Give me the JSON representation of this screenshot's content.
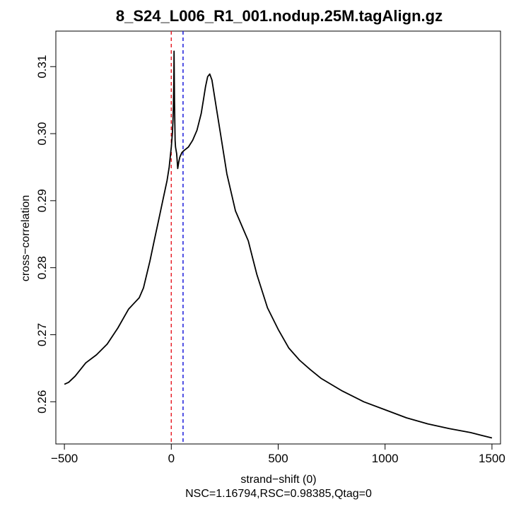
{
  "chart_data": {
    "type": "line",
    "title": "8_S24_L006_R1_001.nodup.25M.tagAlign.gz",
    "xlabel": "strand−shift (0)",
    "ylabel": "cross−correlation",
    "subtitle": "NSC=1.16794,RSC=0.98385,Qtag=0",
    "xlim": [
      -540,
      1540
    ],
    "ylim": [
      0.2537,
      0.3153
    ],
    "xticks": [
      -500,
      0,
      500,
      1000,
      1500
    ],
    "xtick_labels": [
      "−500",
      "0",
      "500",
      "1000",
      "1500"
    ],
    "yticks": [
      0.26,
      0.27,
      0.28,
      0.29,
      0.3,
      0.31
    ],
    "ytick_labels": [
      "0.26",
      "0.27",
      "0.28",
      "0.29",
      "0.30",
      "0.31"
    ],
    "grid": false,
    "vlines": [
      {
        "x": 0,
        "color": "#e8202a"
      },
      {
        "x": 55,
        "color": "#1a1adb"
      }
    ],
    "series": [
      {
        "color": "#000000",
        "x": [
          -500,
          -480,
          -450,
          -400,
          -350,
          -300,
          -250,
          -220,
          -200,
          -180,
          -150,
          -130,
          -100,
          -80,
          -60,
          -40,
          -20,
          -10,
          0,
          5,
          8,
          10,
          12,
          13,
          15,
          18,
          20,
          25,
          30,
          35,
          40,
          50,
          60,
          80,
          100,
          120,
          140,
          150,
          160,
          170,
          180,
          190,
          200,
          210,
          230,
          260,
          300,
          340,
          360,
          380,
          400,
          450,
          500,
          550,
          600,
          650,
          700,
          800,
          900,
          1000,
          1100,
          1200,
          1300,
          1400,
          1450,
          1500
        ],
        "y": [
          0.2626,
          0.2629,
          0.2638,
          0.2658,
          0.267,
          0.2686,
          0.271,
          0.2727,
          0.2738,
          0.2745,
          0.2755,
          0.277,
          0.281,
          0.284,
          0.287,
          0.29,
          0.293,
          0.295,
          0.298,
          0.3,
          0.302,
          0.304,
          0.308,
          0.3123,
          0.305,
          0.299,
          0.298,
          0.297,
          0.2948,
          0.2958,
          0.2965,
          0.2972,
          0.2975,
          0.298,
          0.299,
          0.3005,
          0.303,
          0.305,
          0.307,
          0.3085,
          0.3089,
          0.308,
          0.306,
          0.304,
          0.3,
          0.294,
          0.2885,
          0.2855,
          0.284,
          0.2815,
          0.279,
          0.274,
          0.2708,
          0.268,
          0.2662,
          0.2648,
          0.2635,
          0.2616,
          0.26,
          0.2588,
          0.2576,
          0.2567,
          0.256,
          0.2554,
          0.255,
          0.2546
        ]
      }
    ]
  }
}
